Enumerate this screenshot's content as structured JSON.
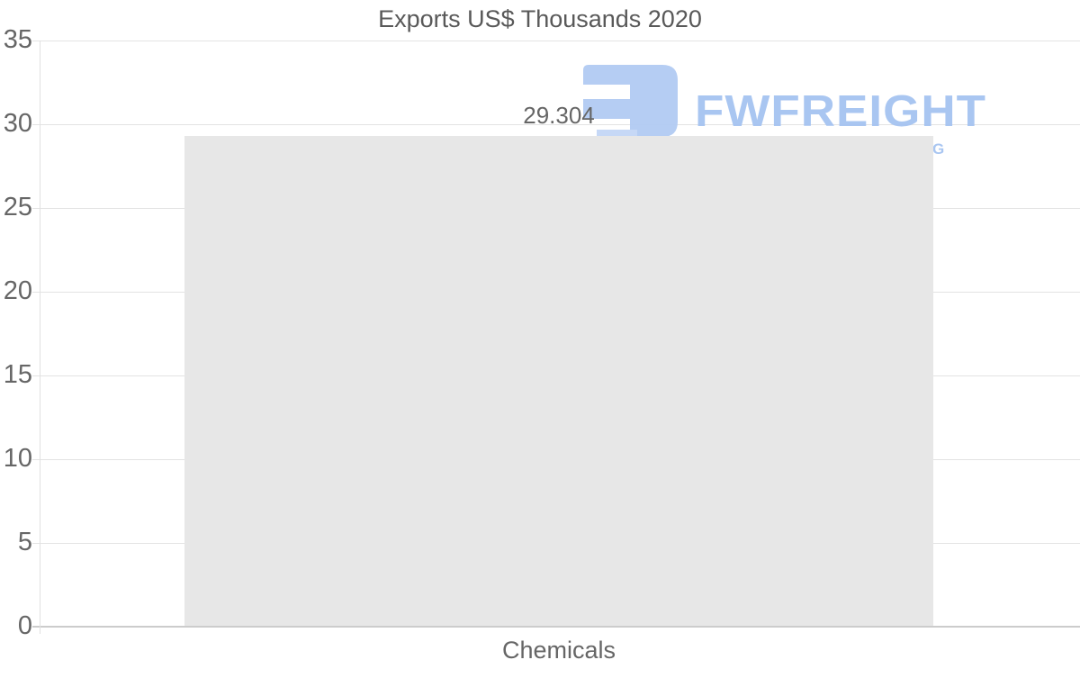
{
  "page": {
    "background": "#ffffff"
  },
  "chart_data": {
    "type": "bar",
    "title": "Exports US$ Thousands 2020",
    "categories": [
      "Chemicals"
    ],
    "values": [
      29.304
    ],
    "value_labels": [
      "29.304"
    ],
    "xlabel": "",
    "ylabel": "",
    "ylim": [
      0,
      35
    ],
    "yticks": [
      0,
      5,
      10,
      15,
      20,
      25,
      30,
      35
    ],
    "grid": true,
    "legend": "none",
    "bar_color": "#e7e7e7",
    "text_color": "#666666",
    "title_color": "#595959",
    "grid_color": "#e3e3e3",
    "axis_color": "#cccccc"
  },
  "watermark": {
    "brand": "FWFREIGHT",
    "tagline_visible": "G",
    "color": "#a5c3f1",
    "icon": "fwfreight-logo-icon"
  }
}
